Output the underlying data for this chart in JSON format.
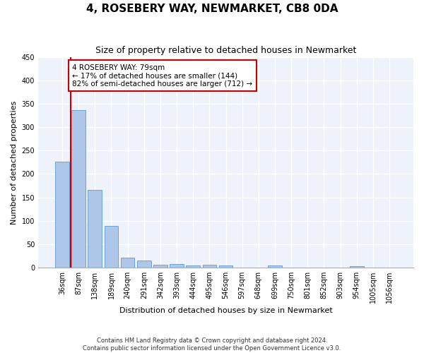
{
  "title": "4, ROSEBERY WAY, NEWMARKET, CB8 0DA",
  "subtitle": "Size of property relative to detached houses in Newmarket",
  "xlabel": "Distribution of detached houses by size in Newmarket",
  "ylabel": "Number of detached properties",
  "bar_labels": [
    "36sqm",
    "87sqm",
    "138sqm",
    "189sqm",
    "240sqm",
    "291sqm",
    "342sqm",
    "393sqm",
    "444sqm",
    "495sqm",
    "546sqm",
    "597sqm",
    "648sqm",
    "699sqm",
    "750sqm",
    "801sqm",
    "852sqm",
    "903sqm",
    "954sqm",
    "1005sqm",
    "1056sqm"
  ],
  "bar_values": [
    227,
    337,
    166,
    89,
    21,
    15,
    7,
    8,
    5,
    6,
    5,
    0,
    0,
    5,
    0,
    0,
    0,
    0,
    4,
    0,
    0
  ],
  "bar_color": "#aec6e8",
  "bar_edge_color": "#5b9bd5",
  "property_line_color": "#cc0000",
  "annotation_text": "4 ROSEBERY WAY: 79sqm\n← 17% of detached houses are smaller (144)\n82% of semi-detached houses are larger (712) →",
  "annotation_box_color": "#ffffff",
  "annotation_box_edge": "#cc0000",
  "ylim": [
    0,
    450
  ],
  "yticks": [
    0,
    50,
    100,
    150,
    200,
    250,
    300,
    350,
    400,
    450
  ],
  "background_color": "#eef3fb",
  "grid_color": "#ffffff",
  "footnote1": "Contains HM Land Registry data © Crown copyright and database right 2024.",
  "footnote2": "Contains public sector information licensed under the Open Government Licence v3.0.",
  "title_fontsize": 11,
  "subtitle_fontsize": 9,
  "axis_label_fontsize": 8,
  "tick_fontsize": 7
}
